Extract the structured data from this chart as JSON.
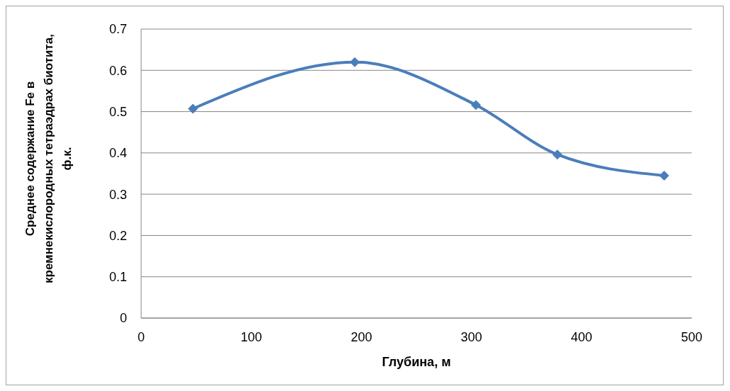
{
  "chart_data": {
    "type": "line",
    "xlabel": "Глубина, м",
    "ylabel": "Среднее содержание Fe в кремнекислородных тетраэдрах биотита, ф.к.",
    "x": [
      47,
      194,
      304,
      378,
      475
    ],
    "series": [
      {
        "color": "#4a7ebb",
        "values": [
          0.507,
          0.62,
          0.516,
          0.396,
          0.345
        ]
      }
    ],
    "xlim": [
      0,
      500
    ],
    "xticks": [
      0,
      100,
      200,
      300,
      400,
      500
    ],
    "ylim": [
      0,
      0.7
    ],
    "yticks": [
      0,
      0.1,
      0.2,
      0.3,
      0.4,
      0.5,
      0.6,
      0.7
    ],
    "grid": "y",
    "marker": "diamond",
    "line_style": "solid",
    "legend": false
  }
}
